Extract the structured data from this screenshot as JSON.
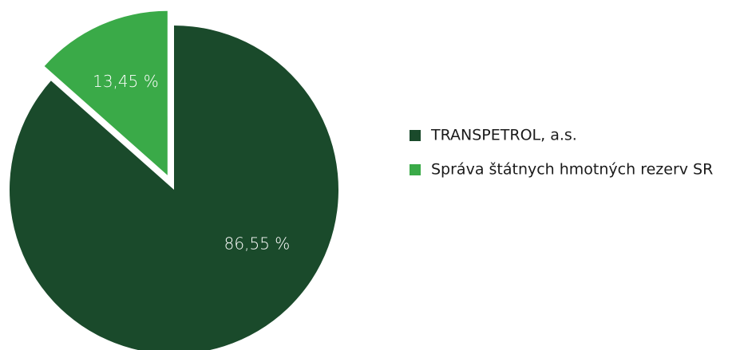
{
  "chart_data": {
    "type": "pie",
    "categories": [
      "TRANSPETROL, a.s.",
      "Správa štátnych hmotných rezerv SR"
    ],
    "values": [
      86.55,
      13.45
    ],
    "value_labels": [
      "86,55 %",
      "13,45 %"
    ],
    "colors": [
      "#1a4a2b",
      "#3aaa48"
    ],
    "legend": "right"
  }
}
